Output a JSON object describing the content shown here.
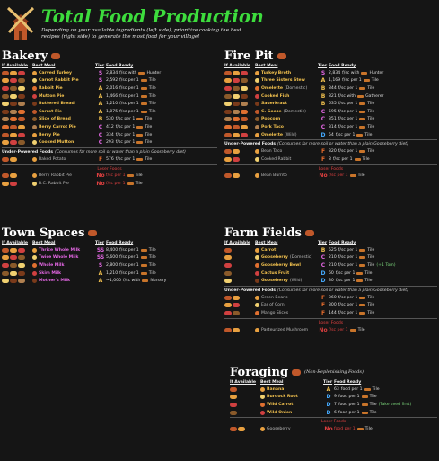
{
  "header": {
    "title": "Total Food Production",
    "subtitle": "Depending on your available ingredients (left side), prioritize cooking the best recipes (right side) to generate the most food for your village!"
  },
  "columns": {
    "available": "If Available",
    "best_meal": "Best Meal",
    "tier": "Tier",
    "food_ready": "Food Ready"
  },
  "bakery": {
    "title": "Bakery",
    "rows": [
      {
        "meal": "Carved Turkey",
        "tier": "S",
        "ready": "2,834",
        "unit": "f/sc with",
        "extra": "Hunter"
      },
      {
        "meal": "Carrot Rabbit Pie",
        "tier": "S",
        "ready": "2,592",
        "unit": "f/sc per 1",
        "extra": "Tile"
      },
      {
        "meal": "Rabbit Pie",
        "tier": "A",
        "ready": "2,016",
        "unit": "f/sc per 1",
        "extra": "Tile"
      },
      {
        "meal": "Mutton Pie",
        "tier": "A",
        "ready": "1,466",
        "unit": "f/sc per 1",
        "extra": "Tile"
      },
      {
        "meal": "Buttered Bread",
        "tier": "A",
        "ready": "1,210",
        "unit": "f/sc per 1",
        "extra": "Tile"
      },
      {
        "meal": "Carrot Pie",
        "tier": "A",
        "ready": "1,075",
        "unit": "f/sc per 1",
        "extra": "Tile"
      },
      {
        "meal": "Slice of Bread",
        "tier": "B",
        "ready": "530",
        "unit": "f/sc per 1",
        "extra": "Tile"
      },
      {
        "meal": "Berry Carrot Pie",
        "tier": "C",
        "ready": "412",
        "unit": "f/sc per 1",
        "extra": "Tile"
      },
      {
        "meal": "Berry Pie",
        "tier": "C",
        "ready": "334",
        "unit": "f/sc per 1",
        "extra": "Tile"
      },
      {
        "meal": "Cooked Mutton",
        "tier": "C",
        "ready": "293",
        "unit": "f/sc per 1",
        "extra": "Tile"
      }
    ],
    "under": "Under-Powered Foods",
    "under_note": "(Consumes far more soil or water than a plain Gooseberry diet)",
    "under_rows": [
      {
        "meal": "Baked Potato",
        "tier": "F",
        "ready": "576",
        "unit": "f/sc per 1",
        "extra": "Tile"
      }
    ],
    "loser": "Loser Foods",
    "loser_rows": [
      {
        "meal": "Berry Rabbit Pie",
        "tier": "No",
        "ready": "",
        "unit": "f/sc per 1",
        "extra": "Tile"
      },
      {
        "meal": "B.C. Rabbit Pie",
        "tier": "No",
        "ready": "",
        "unit": "f/sc per 1",
        "extra": "Tile"
      }
    ]
  },
  "firepit": {
    "title": "Fire Pit",
    "rows": [
      {
        "meal": "Turkey Broth",
        "tier": "S",
        "ready": "2,834",
        "unit": "f/sc with",
        "extra": "Hunter"
      },
      {
        "meal": "Three Sisters Stew",
        "tier": "A",
        "ready": "1,169",
        "unit": "f/sc per 1",
        "extra": "Tile"
      },
      {
        "meal": "Omelette",
        "note": "(Domestic)",
        "tier": "B",
        "ready": "844",
        "unit": "f/sc per 1",
        "extra": "Tile"
      },
      {
        "meal": "Cooked Fish",
        "tier": "B",
        "ready": "821",
        "unit": "f/sc with",
        "extra": "Gatherer"
      },
      {
        "meal": "Sauerkraut",
        "tier": "B",
        "ready": "635",
        "unit": "f/sc per 1",
        "extra": "Tile"
      },
      {
        "meal": "C. Goose",
        "note": "(Domestic)",
        "tier": "C",
        "ready": "595",
        "unit": "f/sc per 1",
        "extra": "Tile"
      },
      {
        "meal": "Popcorn",
        "tier": "C",
        "ready": "351",
        "unit": "f/sc per 1",
        "extra": "Tile"
      },
      {
        "meal": "Pork Taco",
        "tier": "C",
        "ready": "314",
        "unit": "f/sc per 1",
        "extra": "Tile"
      },
      {
        "meal": "Omelette",
        "note": "(Wild)",
        "tier": "D",
        "ready": "54",
        "unit": "f/sc per 1",
        "extra": "Tile"
      }
    ],
    "under": "Under-Powered Foods",
    "under_note": "(Consumes far more soil or water than a plain Gooseberry diet)",
    "under_rows": [
      {
        "meal": "Bean Taco",
        "tier": "F",
        "ready": "320",
        "unit": "f/sc per 1",
        "extra": "Tile"
      },
      {
        "meal": "Cooked Rabbit",
        "tier": "F",
        "ready": "8",
        "unit": "f/sc per 1",
        "extra": "Tile"
      }
    ],
    "loser": "Loser Foods",
    "loser_rows": [
      {
        "meal": "Bean Burrito",
        "tier": "No",
        "ready": "",
        "unit": "f/sc per 1",
        "extra": "Tile"
      }
    ]
  },
  "town": {
    "title": "Town Spaces",
    "rows": [
      {
        "meal": "Thrice Whole Milk",
        "tier": "SS",
        "ready": "8,400",
        "unit": "f/sc per 1",
        "extra": "Tile"
      },
      {
        "meal": "Twice Whole Milk",
        "tier": "SS",
        "ready": "5,600",
        "unit": "f/sc per 1",
        "extra": "Tile"
      },
      {
        "meal": "Whole Milk",
        "tier": "S",
        "ready": "2,800",
        "unit": "f/sc per 1",
        "extra": "Tile"
      },
      {
        "meal": "Skim Milk",
        "tier": "A",
        "ready": "1,210",
        "unit": "f/sc per 1",
        "extra": "Tile"
      },
      {
        "meal": "Mother's Milk",
        "tier": "A",
        "ready": "~1,000",
        "unit": "f/sc with",
        "extra": "Nursery"
      }
    ]
  },
  "farm": {
    "title": "Farm Fields",
    "rows": [
      {
        "meal": "Carrot",
        "tier": "B",
        "ready": "525",
        "unit": "f/sc per 1",
        "extra": "Tile"
      },
      {
        "meal": "Gooseberry",
        "note": "(Domestic)",
        "tier": "C",
        "ready": "210",
        "unit": "f/sc per 1",
        "extra": "Tile"
      },
      {
        "meal": "Gooseberry Bowl",
        "tier": "C",
        "ready": "210",
        "unit": "f/sc per 1",
        "extra": "Tile",
        "tail": "(+1 Tom)"
      },
      {
        "meal": "Cactus Fruit",
        "tier": "D",
        "ready": "60",
        "unit": "f/sc per 1",
        "extra": "Tile"
      },
      {
        "meal": "Gooseberry",
        "note": "(Wild)",
        "tier": "D",
        "ready": "30",
        "unit": "f/sc per 1",
        "extra": "Tile"
      }
    ],
    "under": "Under-Powered Foods",
    "under_note": "(Consumes far more soil or water than a plain Gooseberry diet)",
    "under_rows": [
      {
        "meal": "Green Beans",
        "tier": "F",
        "ready": "360",
        "unit": "f/sc per 1",
        "extra": "Tile"
      },
      {
        "meal": "Ear of Corn",
        "tier": "F",
        "ready": "300",
        "unit": "f/sc per 1",
        "extra": "Tile"
      },
      {
        "meal": "Mango Slices",
        "tier": "F",
        "ready": "144",
        "unit": "f/sc per 1",
        "extra": "Tile"
      }
    ],
    "loser": "Loser Foods",
    "loser_rows": [
      {
        "meal": "Pasteurized Mushroom",
        "tier": "No",
        "ready": "",
        "unit": "f/sc per 1",
        "extra": "Tile"
      }
    ]
  },
  "forage": {
    "title": "Foraging",
    "note": "(Non-Replenishing Foods)",
    "rows": [
      {
        "meal": "Banana",
        "tier": "A",
        "ready": "63",
        "unit": "food per 1",
        "extra": "Tile"
      },
      {
        "meal": "Burdock Root",
        "tier": "D",
        "ready": "9",
        "unit": "food per 1",
        "extra": "Tile"
      },
      {
        "meal": "Wild Carrot",
        "tier": "D",
        "ready": "7",
        "unit": "food per 1",
        "extra": "Tile",
        "tail": "(Take seed first)"
      },
      {
        "meal": "Wild Onion",
        "tier": "D",
        "ready": "6",
        "unit": "food per 1",
        "extra": "Tile"
      }
    ],
    "loser": "Loser Foods",
    "loser_rows": [
      {
        "meal": "Gooseberry",
        "tier": "No",
        "ready": "",
        "unit": "food per 1",
        "extra": "Tile"
      }
    ]
  }
}
